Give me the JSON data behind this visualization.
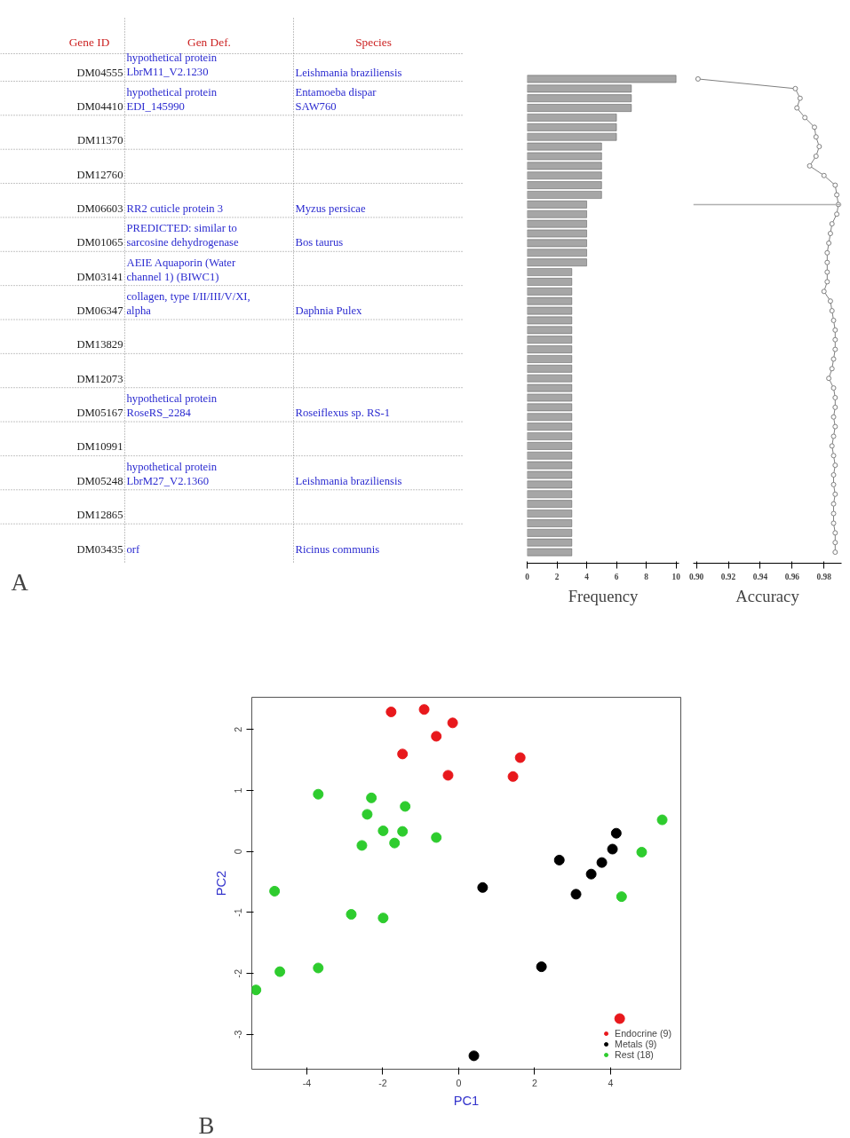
{
  "chart_data": [
    {
      "type": "other",
      "annotations": [
        "A"
      ],
      "categories": [
        "Gene ID",
        "Gen Def.",
        "Species"
      ],
      "cell_labels": [
        [
          "DM04555",
          "hypothetical protein\nLbrM11_V2.1230",
          "Leishmania braziliensis"
        ],
        [
          "DM04410",
          "hypothetical protein\nEDI_145990",
          "Entamoeba dispar\nSAW760"
        ],
        [
          "DM11370",
          null,
          null
        ],
        [
          "DM12760",
          null,
          null
        ],
        [
          "DM06603",
          "RR2 cuticle protein 3",
          "Myzus persicae"
        ],
        [
          "DM01065",
          "PREDICTED: similar to\nsarcosine dehydrogenase",
          "Bos taurus"
        ],
        [
          "DM03141",
          "AEIE Aquaporin (Water\nchannel 1) (BIWC1)",
          null
        ],
        [
          "DM06347",
          "collagen, type I/II/III/V/XI,\nalpha",
          "Daphnia Pulex"
        ],
        [
          "DM13829",
          null,
          null
        ],
        [
          "DM12073",
          null,
          null
        ],
        [
          "DM05167",
          "hypothetical protein\nRoseRS_2284",
          "Roseiflexus sp. RS-1"
        ],
        [
          "DM10991",
          null,
          null
        ],
        [
          "DM05248",
          "hypothetical protein\nLbrM27_V2.1360",
          "Leishmania braziliensis"
        ],
        [
          "DM12865",
          null,
          null
        ],
        [
          "DM03435",
          "orf",
          "Ricinus communis"
        ]
      ]
    },
    {
      "type": "bar",
      "orientation": "horizontal",
      "xlabel": "Frequency",
      "color": "#a6a6a6",
      "tick_labels": "x",
      "grid": false,
      "categories": [
        null,
        null,
        null,
        null,
        null,
        null,
        null,
        null,
        null,
        null,
        null,
        null,
        null,
        null,
        null,
        null,
        null,
        null,
        null,
        null,
        null,
        null,
        null,
        null,
        null,
        null,
        null,
        null,
        null,
        null,
        null,
        null,
        null,
        null,
        null,
        null,
        null,
        null,
        null,
        null,
        null,
        null,
        null,
        null,
        null,
        null,
        null,
        null,
        null,
        null
      ],
      "values": [
        10,
        7,
        7,
        7,
        6,
        6,
        6,
        5,
        5,
        5,
        5,
        5,
        5,
        4,
        4,
        4,
        4,
        4,
        4,
        4,
        3,
        3,
        3,
        3,
        3,
        3,
        3,
        3,
        3,
        3,
        3,
        3,
        3,
        3,
        3,
        3,
        3,
        3,
        3,
        3,
        3,
        3,
        3,
        3,
        3,
        3,
        3,
        3,
        3,
        3
      ],
      "xlim": [
        0,
        10.2
      ],
      "xticks": [
        0,
        2,
        4,
        6,
        8,
        10
      ]
    },
    {
      "type": "line",
      "orientation": "horizontal",
      "xlabel": "Accuracy",
      "color": "#7f7f7f",
      "marker": "circle",
      "line_style": "solid",
      "tick_labels": "x",
      "grid": false,
      "categories": [
        null,
        null,
        null,
        null,
        null,
        null,
        null,
        null,
        null,
        null,
        null,
        null,
        null,
        null,
        null,
        null,
        null,
        null,
        null,
        null,
        null,
        null,
        null,
        null,
        null,
        null,
        null,
        null,
        null,
        null,
        null,
        null,
        null,
        null,
        null,
        null,
        null,
        null,
        null,
        null,
        null,
        null,
        null,
        null,
        null,
        null,
        null,
        null,
        null,
        null
      ],
      "values": [
        0.901,
        0.962,
        0.965,
        0.963,
        0.968,
        0.974,
        0.975,
        0.977,
        0.975,
        0.971,
        0.98,
        0.987,
        0.988,
        0.989,
        0.988,
        0.985,
        0.984,
        0.983,
        0.982,
        0.982,
        0.982,
        0.982,
        0.98,
        0.984,
        0.985,
        0.986,
        0.987,
        0.987,
        0.987,
        0.986,
        0.985,
        0.983,
        0.986,
        0.987,
        0.987,
        0.986,
        0.987,
        0.986,
        0.985,
        0.986,
        0.987,
        0.986,
        0.986,
        0.987,
        0.986,
        0.986,
        0.986,
        0.987,
        0.987,
        0.987
      ],
      "xlim": [
        0.898,
        0.991
      ],
      "xticks": [
        {
          "value": 0.9,
          "label": "0.90"
        },
        {
          "value": 0.92,
          "label": "0.92"
        },
        {
          "value": 0.94,
          "label": "0.94"
        },
        {
          "value": 0.96,
          "label": "0.96"
        },
        {
          "value": 0.98,
          "label": "0.98"
        }
      ]
    },
    {
      "type": "scatter",
      "xlabel": "PC1",
      "ylabel": "PC2",
      "annotations": [
        "B"
      ],
      "legend": "bottom right",
      "marker": "circle",
      "grid": false,
      "xlim": [
        -5.45,
        5.85
      ],
      "ylim": [
        -3.57,
        2.53
      ],
      "xticks": [
        -4,
        -2,
        0,
        2,
        4
      ],
      "yticks": [
        -3,
        -2,
        -1,
        0,
        1,
        2
      ],
      "series": [
        {
          "name": "Endocrine (9)",
          "color": "#e8181c",
          "x": [
            -1.78,
            -0.91,
            -0.16,
            -0.59,
            -1.48,
            -0.28,
            1.62,
            1.43,
            4.24
          ],
          "values": [
            2.29,
            2.33,
            2.11,
            1.89,
            1.6,
            1.25,
            1.54,
            1.23,
            -2.74
          ]
        },
        {
          "name": "Metals (9)",
          "color": "#000000",
          "x": [
            4.15,
            4.05,
            2.65,
            3.77,
            3.49,
            3.09,
            0.63,
            2.18,
            0.4
          ],
          "values": [
            0.3,
            0.04,
            -0.14,
            -0.18,
            -0.37,
            -0.7,
            -0.59,
            -1.89,
            -3.35
          ]
        },
        {
          "name": "Rest (18)",
          "color": "#2ecc2e",
          "x": [
            -3.7,
            -2.3,
            -1.41,
            -2.41,
            -1.99,
            -1.48,
            -0.59,
            -2.55,
            -1.69,
            5.36,
            4.82,
            4.29,
            -4.85,
            -2.83,
            -1.99,
            -3.7,
            -4.71,
            -5.34
          ],
          "values": [
            0.94,
            0.88,
            0.74,
            0.61,
            0.34,
            0.33,
            0.23,
            0.1,
            0.14,
            0.52,
            -0.01,
            -0.74,
            -0.65,
            -1.03,
            -1.09,
            -1.91,
            -1.97,
            -2.27
          ]
        }
      ]
    }
  ]
}
